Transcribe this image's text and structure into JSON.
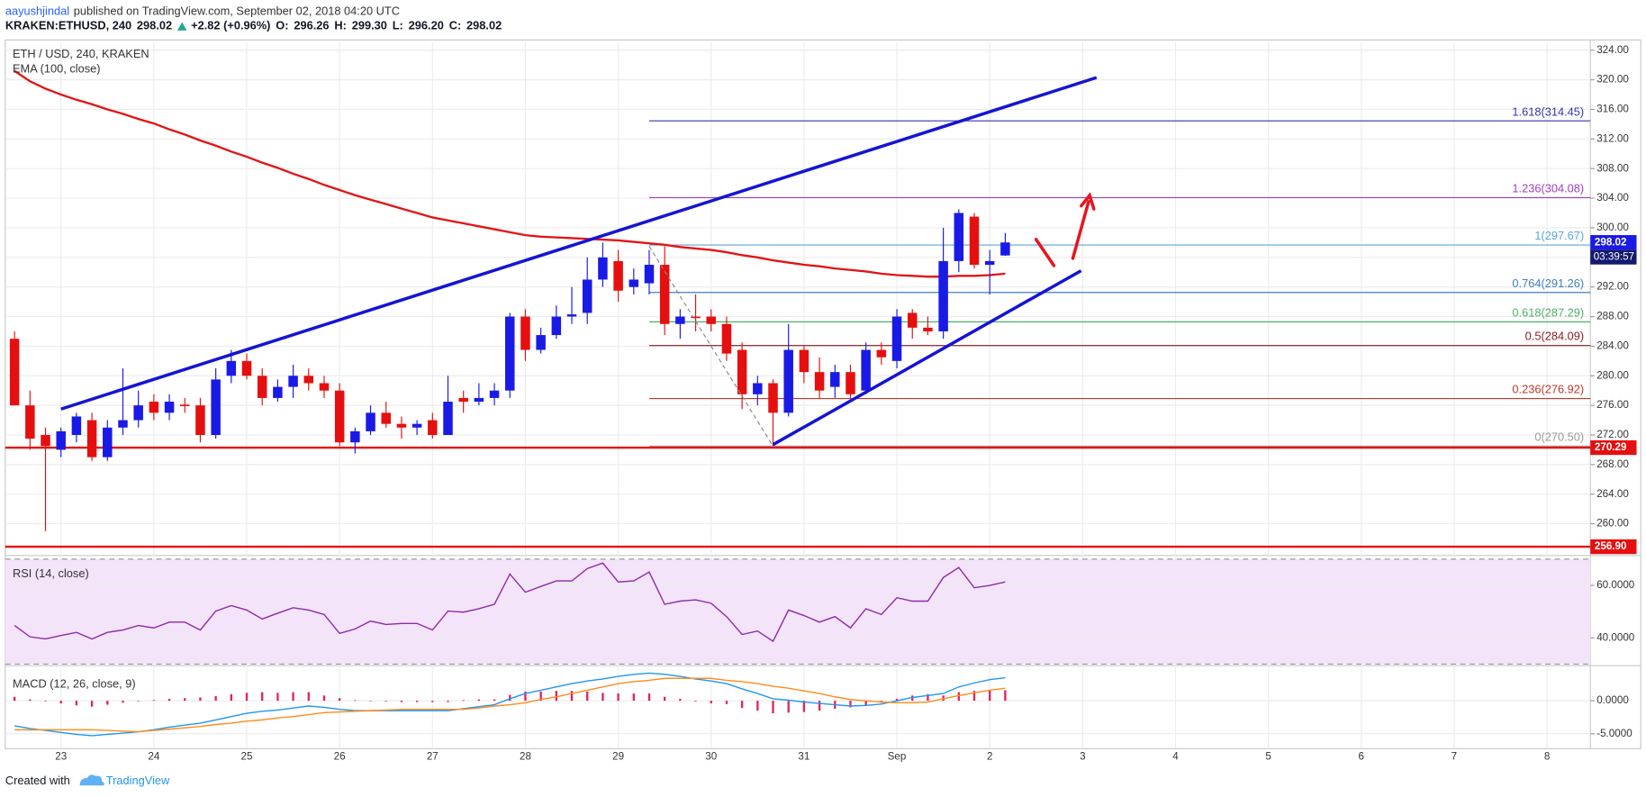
{
  "header": {
    "author": "aayushjindal",
    "published": "published on TradingView.com, September 02, 2018 04:20 UTC",
    "symbol": "KRAKEN:ETHUSD, 240",
    "last": "298.02",
    "change": "+2.82 (+0.96%)",
    "ohlc": [
      {
        "label": "O:",
        "value": "296.26"
      },
      {
        "label": "H:",
        "value": "299.30"
      },
      {
        "label": "L:",
        "value": "296.20"
      },
      {
        "label": "C:",
        "value": "298.02"
      }
    ]
  },
  "chart_data": [
    {
      "type": "candlestick",
      "title": "ETH / USD, 240, KRAKEN",
      "xlim": [
        -0.6,
        101.8
      ],
      "xticks": [
        {
          "value": 3,
          "label": "23"
        },
        {
          "value": 9,
          "label": "24"
        },
        {
          "value": 15,
          "label": "25"
        },
        {
          "value": 21,
          "label": "26"
        },
        {
          "value": 27,
          "label": "27"
        },
        {
          "value": 33,
          "label": "28"
        },
        {
          "value": 39,
          "label": "29"
        },
        {
          "value": 45,
          "label": "30"
        },
        {
          "value": 51,
          "label": "31"
        },
        {
          "value": 57,
          "label": "Sep"
        },
        {
          "value": 63,
          "label": "2"
        },
        {
          "value": 69,
          "label": "3"
        },
        {
          "value": 75,
          "label": "4"
        },
        {
          "value": 81,
          "label": "5"
        },
        {
          "value": 87,
          "label": "6"
        },
        {
          "value": 93,
          "label": "7"
        },
        {
          "value": 99,
          "label": "8"
        }
      ],
      "ylim": [
        256,
        325.1
      ],
      "yticks": [
        {
          "value": 260,
          "label": "260.00"
        },
        {
          "value": 264,
          "label": "264.00"
        },
        {
          "value": 268,
          "label": "268.00"
        },
        {
          "value": 272,
          "label": "272.00"
        },
        {
          "value": 276,
          "label": "276.00"
        },
        {
          "value": 280,
          "label": "280.00"
        },
        {
          "value": 284,
          "label": "284.00"
        },
        {
          "value": 288,
          "label": "288.00"
        },
        {
          "value": 292,
          "label": "292.00"
        },
        {
          "value": 296,
          "label": "296.00"
        },
        {
          "value": 300,
          "label": "300.00"
        },
        {
          "value": 304,
          "label": "304.00"
        },
        {
          "value": 308,
          "label": "308.00"
        },
        {
          "value": 312,
          "label": "312.00"
        },
        {
          "value": 316,
          "label": "316.00"
        },
        {
          "value": 320,
          "label": "320.00"
        },
        {
          "value": 324,
          "label": "324.00"
        }
      ],
      "grid": true,
      "up_color": "#1a1ae6",
      "down_color": "#e60f0f",
      "open": [
        285,
        276,
        272,
        270,
        272,
        274,
        269,
        273,
        274,
        276.5,
        275,
        276.1,
        276,
        272,
        280,
        282,
        280,
        277,
        278.5,
        280,
        279,
        278,
        271,
        272.5,
        275,
        273.5,
        273,
        274,
        272,
        277,
        276.5,
        277,
        278,
        288,
        283.5,
        285.5,
        288,
        288.5,
        293,
        295.5,
        292,
        292.5,
        295,
        287,
        288,
        288,
        287,
        283.5,
        277.5,
        279,
        275,
        283.5,
        280.5,
        278.5,
        280.5,
        278,
        283.5,
        282,
        288.5,
        286.5,
        286,
        295.5,
        301.5,
        295,
        296.26
      ],
      "high": [
        286,
        278,
        273,
        273,
        275,
        275,
        274,
        281,
        278,
        277.5,
        277.5,
        277,
        277,
        281,
        283.5,
        283,
        281,
        279.5,
        281.5,
        281,
        280,
        279,
        273,
        276,
        276.5,
        274.5,
        274,
        275,
        280,
        278,
        279,
        279,
        288.5,
        289,
        286.5,
        289.5,
        292,
        296,
        298,
        297,
        294.5,
        297,
        297.5,
        289,
        291,
        289,
        288,
        284.5,
        280,
        279.5,
        287,
        284,
        282.5,
        281.5,
        281.5,
        284.5,
        284.5,
        289,
        289,
        288,
        300,
        302.5,
        302,
        297,
        299.3
      ],
      "low": [
        276,
        270,
        259,
        269,
        271,
        268.5,
        268.5,
        272,
        273,
        274,
        274,
        275,
        271,
        271.5,
        279,
        279.5,
        276,
        276.5,
        277,
        278,
        277,
        270.5,
        269.5,
        272,
        273,
        271.5,
        272,
        271.5,
        272,
        275,
        276,
        276,
        277,
        282,
        283,
        285,
        287,
        287,
        292,
        290,
        291,
        291,
        285.5,
        285,
        286,
        286,
        282,
        275.5,
        276,
        270.5,
        274.5,
        279,
        277,
        277,
        277,
        277.5,
        281.5,
        281,
        285,
        285.5,
        285,
        294,
        294.5,
        291,
        296.2
      ],
      "close": [
        276,
        271.5,
        270.5,
        272.5,
        274.5,
        269,
        273,
        274,
        276,
        275,
        276.5,
        275.9,
        272,
        279.5,
        282,
        280,
        277,
        278.5,
        280,
        279,
        278,
        271,
        272.5,
        275,
        273.5,
        273,
        273.5,
        272,
        276.5,
        276.5,
        277,
        278,
        288,
        283.5,
        285.5,
        288,
        288.3,
        293,
        296,
        291.5,
        293,
        295,
        287,
        288,
        287.8,
        287,
        283,
        277.5,
        279,
        275,
        283.5,
        280.5,
        278,
        280.5,
        277.5,
        283.5,
        282.5,
        288,
        286.5,
        286,
        295.5,
        302,
        295,
        295.5,
        298.02
      ],
      "series": [
        {
          "name": "EMA (100, close)",
          "color": "#e31414",
          "values": [
            321.2,
            319.8,
            318.8,
            318.0,
            317.3,
            316.7,
            316.0,
            315.4,
            314.7,
            314.1,
            313.3,
            312.6,
            311.8,
            311.1,
            310.3,
            309.6,
            308.8,
            308.1,
            307.3,
            306.6,
            305.8,
            305.1,
            304.4,
            303.8,
            303.2,
            302.6,
            302.0,
            301.4,
            301.0,
            300.6,
            300.2,
            299.8,
            299.4,
            299.0,
            298.8,
            298.7,
            298.6,
            298.5,
            298.4,
            298.3,
            298.1,
            297.9,
            297.7,
            297.4,
            297.2,
            297.0,
            296.7,
            296.3,
            296.0,
            295.6,
            295.3,
            295.0,
            294.8,
            294.5,
            294.3,
            294.1,
            293.8,
            293.6,
            293.5,
            293.4,
            293.4,
            293.5,
            293.5,
            293.6,
            293.8
          ]
        }
      ],
      "levels": [
        {
          "value": 270.29,
          "label": "270.29",
          "color": "#e60f0f"
        },
        {
          "value": 256.9,
          "label": "256.90",
          "color": "#e60f0f"
        }
      ],
      "price_tag": {
        "value": 298.02,
        "label": "298.02",
        "countdown": "03:39:57",
        "color": "#1a1ae6"
      },
      "fibonacci": {
        "x_start": 41,
        "levels": [
          {
            "value": 314.45,
            "label": "1.618(314.45)",
            "color": "#3535a8"
          },
          {
            "value": 304.08,
            "label": "1.236(304.08)",
            "color": "#a040c0"
          },
          {
            "value": 297.67,
            "label": "1(297.67)",
            "color": "#5aa6d6"
          },
          {
            "value": 291.26,
            "label": "0.764(291.26)",
            "color": "#3f7fbf"
          },
          {
            "value": 287.29,
            "label": "0.618(287.29)",
            "color": "#4caf6a"
          },
          {
            "value": 284.09,
            "label": "0.5(284.09)",
            "color": "#8a1c1c"
          },
          {
            "value": 276.92,
            "label": "0.236(276.92)",
            "color": "#c0392b"
          },
          {
            "value": 270.5,
            "label": "0(270.50)",
            "color": "#9a9a9a"
          }
        ]
      },
      "trendlines": [
        {
          "x": [
            3,
            69.9
          ],
          "y": [
            275.5,
            320.3
          ],
          "color": "#1414d4"
        },
        {
          "x": [
            49,
            68.9
          ],
          "y": [
            270.7,
            294.2
          ],
          "color": "#1414d4"
        },
        {
          "x": [
            41,
            49
          ],
          "y": [
            297.5,
            270.5
          ],
          "color": "#888888",
          "dashed": true
        }
      ]
    },
    {
      "type": "line",
      "title": "RSI (14, close)",
      "ylim": [
        29.8,
        70.6
      ],
      "yticks": [
        {
          "value": 40,
          "label": "40.0000"
        },
        {
          "value": 60,
          "label": "60.0000"
        }
      ],
      "band": [
        30,
        70
      ],
      "band_color": "#f3e4fa",
      "series": [
        {
          "color": "#8e2aa8",
          "values": [
            44.7,
            40.4,
            39.6,
            40.9,
            42.1,
            39.6,
            42.1,
            43.0,
            44.7,
            43.8,
            46.0,
            46.0,
            43.0,
            50.2,
            52.3,
            50.6,
            47.2,
            49.4,
            51.5,
            50.6,
            48.9,
            41.7,
            43.4,
            46.4,
            45.1,
            45.5,
            45.5,
            43.0,
            50.2,
            49.8,
            51.1,
            52.8,
            64.3,
            57.4,
            59.6,
            61.7,
            61.7,
            66.4,
            68.5,
            61.3,
            61.7,
            65.1,
            52.8,
            54.0,
            54.5,
            53.2,
            48.1,
            41.3,
            42.6,
            38.7,
            50.6,
            48.5,
            46.0,
            48.1,
            43.8,
            51.1,
            48.9,
            55.3,
            54.0,
            54.0,
            63.0,
            66.8,
            59.1,
            60.0,
            61.3
          ]
        }
      ]
    },
    {
      "type": "macd",
      "title": "MACD (12, 26, close, 9)",
      "ylim": [
        -7.1,
        5.0
      ],
      "yticks": [
        {
          "value": 0,
          "label": "0.0000"
        },
        {
          "value": -5,
          "label": "-5.0000"
        }
      ],
      "histogram": {
        "color": "#e0245e",
        "values": [
          0.6,
          0.2,
          -0.1,
          -0.4,
          -0.7,
          -0.9,
          -0.6,
          -0.3,
          0.0,
          0.1,
          0.3,
          0.4,
          0.5,
          0.7,
          1.0,
          1.2,
          1.3,
          1.2,
          1.3,
          1.3,
          0.8,
          0.4,
          0.1,
          0.0,
          -0.1,
          -0.2,
          -0.2,
          -0.2,
          -0.2,
          0.1,
          0.2,
          0.2,
          0.9,
          1.4,
          1.4,
          1.5,
          1.5,
          1.4,
          1.2,
          1.1,
          1.1,
          1.1,
          0.6,
          0.3,
          -0.1,
          -0.4,
          -0.5,
          -1.1,
          -1.5,
          -1.9,
          -1.8,
          -1.7,
          -1.5,
          -1.2,
          -1.0,
          -0.7,
          -0.3,
          0.3,
          0.8,
          1.0,
          0.8,
          1.3,
          1.5,
          1.6,
          1.6
        ]
      },
      "series": [
        {
          "color": "#2196f3",
          "values": [
            -3.8,
            -4.2,
            -4.5,
            -4.8,
            -5.1,
            -5.3,
            -5.1,
            -4.9,
            -4.7,
            -4.4,
            -4.0,
            -3.7,
            -3.4,
            -2.9,
            -2.4,
            -1.9,
            -1.6,
            -1.4,
            -1.1,
            -0.8,
            -1.0,
            -1.3,
            -1.5,
            -1.5,
            -1.5,
            -1.5,
            -1.5,
            -1.5,
            -1.5,
            -1.2,
            -0.9,
            -0.6,
            0.3,
            1.1,
            1.6,
            2.1,
            2.6,
            3.0,
            3.3,
            3.7,
            4.0,
            4.2,
            4.0,
            3.7,
            3.3,
            3.0,
            2.6,
            1.8,
            1.1,
            0.3,
            0.1,
            -0.2,
            -0.4,
            -0.6,
            -0.8,
            -0.7,
            -0.5,
            0.0,
            0.5,
            0.8,
            1.1,
            2.1,
            2.7,
            3.2,
            3.5
          ]
        },
        {
          "color": "#ff8c1a",
          "values": [
            -4.4,
            -4.4,
            -4.4,
            -4.4,
            -4.4,
            -4.4,
            -4.5,
            -4.6,
            -4.7,
            -4.5,
            -4.3,
            -4.1,
            -3.9,
            -3.6,
            -3.4,
            -3.1,
            -2.9,
            -2.6,
            -2.4,
            -2.1,
            -1.8,
            -1.7,
            -1.6,
            -1.5,
            -1.4,
            -1.3,
            -1.3,
            -1.3,
            -1.3,
            -1.3,
            -1.1,
            -0.8,
            -0.6,
            -0.3,
            0.2,
            0.6,
            1.1,
            1.6,
            2.1,
            2.6,
            2.9,
            3.1,
            3.4,
            3.4,
            3.4,
            3.4,
            3.1,
            2.9,
            2.6,
            2.2,
            1.9,
            1.5,
            1.1,
            0.6,
            0.2,
            0.0,
            -0.2,
            -0.3,
            -0.3,
            -0.2,
            0.3,
            0.8,
            1.2,
            1.6,
            1.9
          ]
        }
      ]
    }
  ],
  "footer": {
    "created": "Created with",
    "brand": "TradingView"
  }
}
